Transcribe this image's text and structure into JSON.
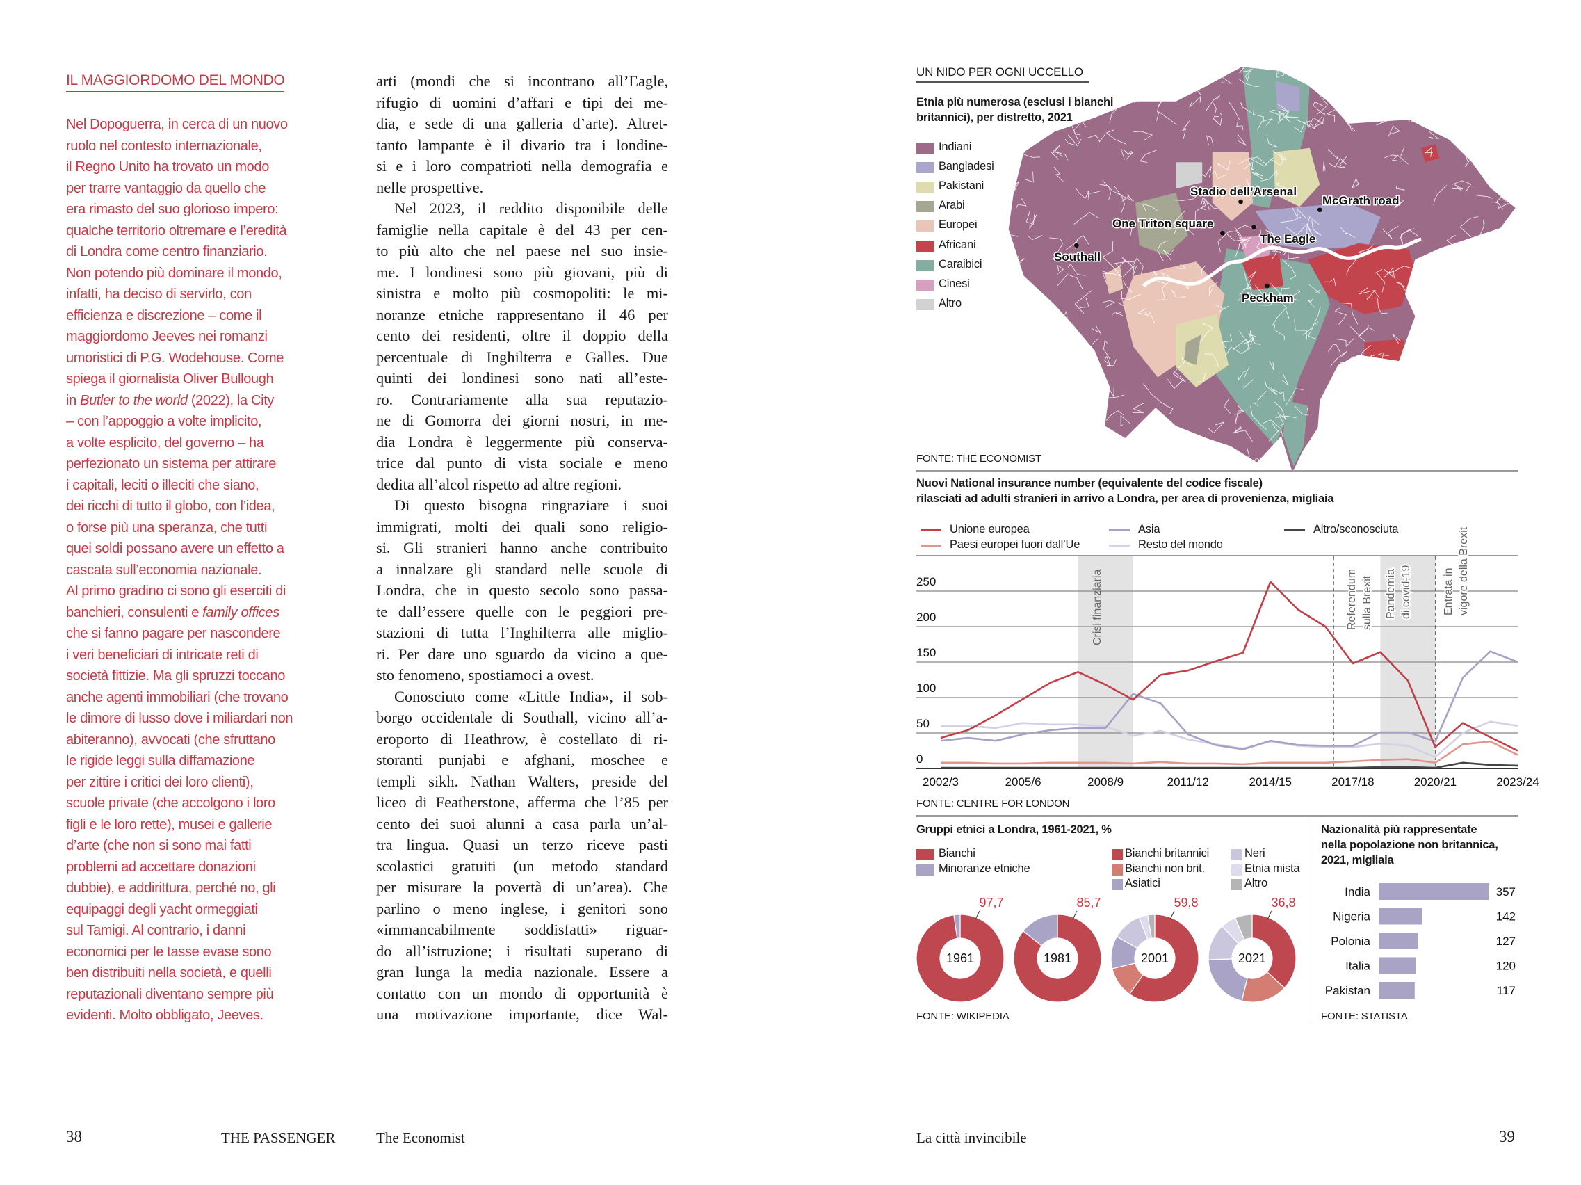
{
  "left_page": {
    "sidebar": {
      "heading": "IL MAGGIORDOMO DEL MONDO",
      "lines": [
        "Nel Dopoguerra, in cerca di un nuovo",
        "ruolo nel contesto internazionale,",
        "il Regno Unito ha trovato un modo",
        "per trarre vantaggio da quello che",
        "era rimasto del suo glorioso impero:",
        "qualche territorio oltremare e l’eredità",
        "di Londra come centro finanziario.",
        "Non potendo più dominare il mondo,",
        "infatti, ha deciso di servirlo, con",
        "efficienza e discrezione – come il",
        "maggiordomo Jeeves nei romanzi",
        "umoristici di P.G. Wodehouse. Come",
        "spiega il giornalista Oliver Bullough",
        {
          "parts": [
            {
              "t": "in "
            },
            {
              "t": "Butler to the world",
              "i": true
            },
            {
              "t": " (2022), la City"
            }
          ]
        },
        "– con l’appoggio a volte implicito,",
        "a volte esplicito, del governo – ha",
        "perfezionato un sistema per attirare",
        "i capitali, leciti o illeciti che siano,",
        "dei ricchi di tutto il globo, con l’idea,",
        "o forse più una speranza, che tutti",
        "quei soldi possano avere un effetto a",
        "cascata sull’economia nazionale.",
        "Al primo gradino ci sono gli eserciti di",
        {
          "parts": [
            {
              "t": "banchieri, consulenti e "
            },
            {
              "t": "family offices",
              "i": true
            }
          ]
        },
        "che si fanno pagare per nascondere",
        "i veri beneficiari di intricate reti di",
        "società fittizie. Ma gli spruzzi toccano",
        "anche agenti immobiliari (che trovano",
        "le dimore di lusso dove i miliardari non",
        "abiteranno), avvocati (che sfruttano",
        "le rigide leggi sulla diffamazione",
        "per zittire i critici dei loro clienti),",
        "scuole private (che accolgono i loro",
        "figli e le loro rette), musei e gallerie",
        "d’arte (che non si sono mai fatti",
        "problemi ad accettare donazioni",
        "dubbie), e addirittura, perché no, gli",
        "equipaggi degli yacht ormeggiati",
        "sul Tamigi. Al contrario, i danni",
        "economici per le tasse evase sono",
        "ben distribuiti nella società, e quelli",
        "reputazionali diventano sempre più",
        "evidenti. Molto obbligato, Jeeves."
      ]
    },
    "article": {
      "paragraphs": [
        {
          "continued": true,
          "ends": true,
          "lines": [
            "arti (mondi che si incontrano all’Eagle,",
            "rifugio di uomini d’affari e tipi dei me-",
            "dia, e sede di una galleria d’arte). Altret-",
            "tanto lampante è il divario tra i londine-",
            "si e i loro compatrioti nella demografia e",
            "nelle prospettive."
          ]
        },
        {
          "continued": false,
          "ends": true,
          "lines": [
            "Nel 2023, il reddito disponibile delle",
            "famiglie nella capitale è del 43 per cen-",
            "to più alto che nel paese nel suo insie-",
            "me. I londinesi sono più giovani, più di",
            "sinistra e molto più cosmopoliti: le mi-",
            "noranze etniche rappresentano il 46 per",
            "cento dei residenti, oltre il doppio della",
            "percentuale di Inghilterra e Galles. Due",
            "quinti dei londinesi sono nati all’este-",
            "ro. Contrariamente alla sua reputazio-",
            "ne di Gomorra dei giorni nostri, in me-",
            "dia Londra è leggermente più conserva-",
            "trice dal punto di vista sociale e meno",
            "dedita all’alcol rispetto ad altre regioni."
          ]
        },
        {
          "continued": false,
          "ends": true,
          "lines": [
            "Di questo bisogna ringraziare i suoi",
            "immigrati, molti dei quali sono religio-",
            "si. Gli stranieri hanno anche contribuito",
            "a innalzare gli standard nelle scuole di",
            "Londra, che in questo secolo sono passa-",
            "te dall’essere quelle con le peggiori pre-",
            "stazioni di tutta l’Inghilterra alle miglio-",
            "ri. Per dare uno sguardo da vicino a que-",
            "sto fenomeno, spostiamoci a ovest."
          ]
        },
        {
          "continued": false,
          "ends": false,
          "lines": [
            "Conosciuto come «Little India», il sob-",
            "borgo occidentale di Southall, vicino all’a-",
            "eroporto di Heathrow, è costellato di ri-",
            "storanti punjabi e afghani, moschee e",
            "templi sikh. Nathan Walters, preside del",
            "liceo di Featherstone, afferma che l’85 per",
            "cento dei suoi alunni a casa parla un’al-",
            "tra lingua. Quasi un terzo riceve pasti",
            "scolastici gratuiti (un metodo standard",
            "per misurare la povertà di un’area). Che",
            "parlino o meno inglese, i genitori sono",
            "«immancabilmente soddisfatti» riguar-",
            "do all’istruzione; i risultati superano di",
            "gran lunga la media nazionale. Essere a",
            "contatto con un mondo di opportunità è",
            "una motivazione importante, dice Wal-"
          ]
        }
      ]
    },
    "footer": {
      "page_number": "38",
      "magazine": "THE PASSENGER",
      "source": "The Economist"
    }
  },
  "right_page": {
    "footer": {
      "section": "La città invincibile",
      "page_number": "39"
    },
    "map": {
      "title": "UN NIDO PER OGNI UCCELLO",
      "subtitle_lines": [
        "Etnia più numerosa (esclusi i bianchi",
        "britannici), per distretto, 2021"
      ],
      "legend": [
        {
          "label": "Indiani",
          "color": "#9b6b87"
        },
        {
          "label": "Bangladesi",
          "color": "#aaa6cb"
        },
        {
          "label": "Pakistani",
          "color": "#dedcaf"
        },
        {
          "label": "Arabi",
          "color": "#a5a792"
        },
        {
          "label": "Europei",
          "color": "#eac6b8"
        },
        {
          "label": "Africani",
          "color": "#c3444d"
        },
        {
          "label": "Caraibici",
          "color": "#86ada2"
        },
        {
          "label": "Cinesi",
          "color": "#d79fbf"
        },
        {
          "label": "Altro",
          "color": "#d2d2d2"
        }
      ],
      "places": [
        "Stadio dell’Arsenal",
        "McGrath road",
        "One Triton square",
        "The Eagle",
        "Southall",
        "Peckham"
      ],
      "source": "FONTE: THE ECONOMIST"
    },
    "chart_data": [
      {
        "type": "line",
        "title": "Nuovi National insurance number (equivalente del codice fiscale) rilasciati ad adulti stranieri in arrivo a Londra, per area di provenienza, migliaia",
        "title_lines": [
          "Nuovi National insurance number (equivalente del codice fiscale)",
          "rilasciati ad adulti stranieri in arrivo a Londra, per area di provenienza, migliaia"
        ],
        "x": [
          "2002/3",
          "2003/4",
          "2004/5",
          "2005/6",
          "2006/7",
          "2007/8",
          "2008/9",
          "2009/10",
          "2010/11",
          "2011/12",
          "2012/13",
          "2013/14",
          "2014/15",
          "2015/16",
          "2016/17",
          "2017/18",
          "2018/19",
          "2019/20",
          "2020/21",
          "2021/22",
          "2022/23",
          "2023/24"
        ],
        "x_tick_labels": [
          "2002/3",
          "2005/6",
          "2008/9",
          "2011/12",
          "2014/15",
          "2017/18",
          "2020/21",
          "2023/24"
        ],
        "y_ticks": [
          0,
          50,
          100,
          150,
          200,
          250
        ],
        "ylim": [
          0,
          300
        ],
        "grid": true,
        "legend_position": "top",
        "series": [
          {
            "name": "Unione europea",
            "color": "#c0404a",
            "values": [
              43,
              54,
              75,
              98,
              121,
              136,
              118,
              97,
              132,
              138,
              151,
              163,
              263,
              224,
              200,
              148,
              164,
              124,
              30,
              64,
              44,
              25
            ]
          },
          {
            "name": "Paesi europei fuori dall’Ue",
            "color": "#e0968b",
            "values": [
              8,
              8,
              7,
              7,
              8,
              8,
              8,
              7,
              9,
              7,
              7,
              6,
              8,
              8,
              8,
              10,
              12,
              13,
              8,
              34,
              38,
              19
            ]
          },
          {
            "name": "Asia",
            "color": "#a6a1c7",
            "values": [
              39,
              43,
              39,
              48,
              54,
              57,
              57,
              105,
              92,
              48,
              33,
              27,
              39,
              33,
              32,
              32,
              51,
              51,
              38,
              128,
              165,
              150
            ]
          },
          {
            "name": "Resto del mondo",
            "color": "#d3d1e5",
            "values": [
              60,
              60,
              57,
              64,
              62,
              62,
              59,
              46,
              53,
              41,
              34,
              28,
              38,
              32,
              30,
              30,
              35,
              32,
              16,
              50,
              66,
              60
            ]
          },
          {
            "name": "Altro/sconosciuta",
            "color": "#444444",
            "values": [
              1,
              1,
              1,
              1,
              1,
              1,
              1,
              1,
              1,
              1,
              1,
              1,
              1,
              1,
              1,
              1,
              2,
              2,
              1,
              8,
              5,
              4
            ]
          }
        ],
        "shaded_periods": [
          {
            "label": "Crisi finanziaria",
            "from": "2007/8",
            "to": "2009/10"
          },
          {
            "label": "Pandemia di covid-19",
            "label_lines": [
              "Pandemia",
              "di covid-19"
            ],
            "from": "2018/19",
            "to": "2020/21"
          }
        ],
        "events": [
          {
            "label_lines": [
              "Referendum",
              "sulla Brexit"
            ],
            "at": "2016/17"
          },
          {
            "label_lines": [
              "Entrata in",
              "vigore della Brexit"
            ],
            "at": "2020/21"
          }
        ],
        "source": "FONTE: CENTRE FOR LONDON"
      },
      {
        "type": "pie",
        "title": "Gruppi etnici a Londra, 1961-2021, %",
        "legend_primary": [
          {
            "label": "Bianchi",
            "color": "#bf4750"
          },
          {
            "label": "Minoranze etniche",
            "color": "#a9a4c6"
          }
        ],
        "legend_detail": [
          {
            "label": "Bianchi britannici",
            "color": "#bf4750"
          },
          {
            "label": "Bianchi non brit.",
            "color": "#d47d72"
          },
          {
            "label": "Asiatici",
            "color": "#a9a4c6"
          },
          {
            "label": "Neri",
            "color": "#c9c6de"
          },
          {
            "label": "Etnia mista",
            "color": "#dedcec"
          },
          {
            "label": "Altro",
            "color": "#b5b5b5"
          }
        ],
        "donuts": [
          {
            "year": "1961",
            "label": "97,7",
            "slices": [
              {
                "name": "Bianchi",
                "value": 97.7,
                "color": "#bf4750"
              },
              {
                "name": "Minoranze etniche",
                "value": 2.3,
                "color": "#a9a4c6"
              }
            ]
          },
          {
            "year": "1981",
            "label": "85,7",
            "slices": [
              {
                "name": "Bianchi",
                "value": 85.7,
                "color": "#bf4750"
              },
              {
                "name": "Minoranze etniche",
                "value": 14.3,
                "color": "#a9a4c6"
              }
            ]
          },
          {
            "year": "2001",
            "label": "59,8",
            "slices": [
              {
                "name": "Bianchi britannici",
                "value": 59.8,
                "color": "#bf4750"
              },
              {
                "name": "Bianchi non brit.",
                "value": 11.4,
                "color": "#d47d72"
              },
              {
                "name": "Asiatici",
                "value": 12.1,
                "color": "#a9a4c6"
              },
              {
                "name": "Neri",
                "value": 10.9,
                "color": "#c9c6de"
              },
              {
                "name": "Etnia mista",
                "value": 3.2,
                "color": "#dedcec"
              },
              {
                "name": "Altro",
                "value": 2.6,
                "color": "#b5b5b5"
              }
            ]
          },
          {
            "year": "2021",
            "label": "36,8",
            "slices": [
              {
                "name": "Bianchi britannici",
                "value": 36.8,
                "color": "#bf4750"
              },
              {
                "name": "Bianchi non brit.",
                "value": 17.0,
                "color": "#d47d72"
              },
              {
                "name": "Asiatici",
                "value": 20.7,
                "color": "#a9a4c6"
              },
              {
                "name": "Neri",
                "value": 13.5,
                "color": "#c9c6de"
              },
              {
                "name": "Etnia mista",
                "value": 5.7,
                "color": "#dedcec"
              },
              {
                "name": "Altro",
                "value": 6.3,
                "color": "#b5b5b5"
              }
            ]
          }
        ],
        "source": "FONTE: WIKIPEDIA"
      },
      {
        "type": "bar",
        "orientation": "horizontal",
        "title_lines": [
          "Nazionalità più rappresentate",
          "nella popolazione non britannica,",
          "2021, migliaia"
        ],
        "categories": [
          "India",
          "Nigeria",
          "Polonia",
          "Italia",
          "Pakistan"
        ],
        "values": [
          357,
          142,
          127,
          120,
          117
        ],
        "color": "#a9a4c6",
        "source": "FONTE: STATISTA"
      }
    ]
  }
}
